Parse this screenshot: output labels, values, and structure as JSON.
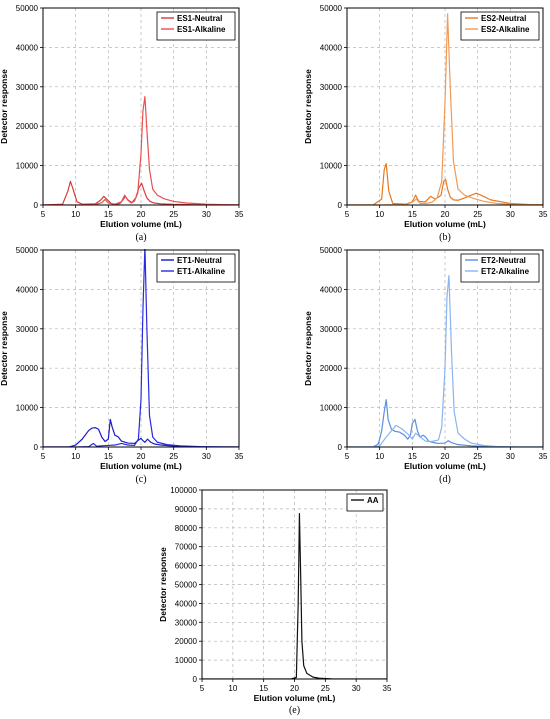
{
  "chart_data": [
    {
      "id": "a",
      "type": "line",
      "caption": "(a)",
      "xlabel": "Elution volume (mL)",
      "ylabel": "Detector response",
      "xlim": [
        5,
        35
      ],
      "ylim": [
        0,
        50000
      ],
      "xticks": [
        5,
        10,
        15,
        20,
        25,
        30,
        35
      ],
      "yticks": [
        0,
        10000,
        20000,
        30000,
        40000,
        50000
      ],
      "grid": true,
      "legend_position": "top-right",
      "series": [
        {
          "name": "ES1-Neutral",
          "color": "#d93a3a",
          "x": [
            5,
            8,
            8.8,
            9.2,
            9.6,
            10.2,
            11,
            13,
            13.8,
            14.3,
            14.8,
            15.5,
            16.3,
            16.8,
            17.2,
            17.6,
            18,
            18.6,
            19.2,
            19.7,
            20.1,
            20.5,
            20.9,
            21.4,
            22,
            23,
            25,
            28,
            32,
            35
          ],
          "y": [
            0,
            200,
            3500,
            6000,
            4000,
            800,
            200,
            300,
            1200,
            2200,
            1400,
            300,
            200,
            400,
            1200,
            2200,
            1300,
            600,
            1800,
            4500,
            5500,
            3500,
            1800,
            900,
            500,
            300,
            150,
            80,
            40,
            20
          ]
        },
        {
          "name": "ES1-Alkaline",
          "color": "#e85050",
          "x": [
            5,
            10,
            13,
            14,
            14.5,
            15,
            16,
            17,
            17.5,
            18,
            18.5,
            19,
            19.5,
            20,
            20.3,
            20.6,
            20.9,
            21.3,
            21.8,
            22.5,
            23.5,
            25,
            27,
            30,
            33,
            35
          ],
          "y": [
            0,
            0,
            100,
            600,
            1400,
            500,
            200,
            800,
            2500,
            1200,
            500,
            1000,
            3000,
            13000,
            24000,
            27500,
            19000,
            9000,
            4000,
            2500,
            1600,
            900,
            500,
            200,
            80,
            30
          ]
        }
      ]
    },
    {
      "id": "b",
      "type": "line",
      "caption": "(b)",
      "xlabel": "Elution volume (mL)",
      "ylabel": "Detector response",
      "xlim": [
        5,
        35
      ],
      "ylim": [
        0,
        50000
      ],
      "xticks": [
        5,
        10,
        15,
        20,
        25,
        30,
        35
      ],
      "yticks": [
        0,
        10000,
        20000,
        30000,
        40000,
        50000
      ],
      "grid": true,
      "legend_position": "top-right",
      "series": [
        {
          "name": "ES2-Neutral",
          "color": "#e8781e",
          "x": [
            5,
            9,
            10.3,
            10.7,
            11,
            11.4,
            12,
            14,
            15,
            15.5,
            16,
            17,
            17.8,
            18.5,
            19,
            19.4,
            19.8,
            20.1,
            20.4,
            20.8,
            21.3,
            22,
            23,
            24,
            24.8,
            25.5,
            27,
            30,
            33,
            35
          ],
          "y": [
            0,
            0,
            1500,
            9000,
            10500,
            3500,
            400,
            200,
            800,
            2500,
            900,
            800,
            2200,
            1500,
            2000,
            2500,
            6000,
            6500,
            4000,
            2000,
            1300,
            1200,
            1800,
            2500,
            3000,
            2500,
            1300,
            400,
            100,
            50
          ]
        },
        {
          "name": "ES2-Alkaline",
          "color": "#f09a55",
          "x": [
            5,
            10,
            14,
            15,
            15.6,
            16.2,
            17,
            18,
            18.8,
            19.5,
            20,
            20.4,
            20.8,
            21.3,
            22,
            23,
            24.5,
            26,
            28,
            30,
            35
          ],
          "y": [
            0,
            0,
            100,
            700,
            1500,
            400,
            400,
            700,
            1800,
            6000,
            26000,
            48500,
            30000,
            11000,
            4000,
            2500,
            1600,
            900,
            400,
            200,
            20
          ]
        }
      ]
    },
    {
      "id": "c",
      "type": "line",
      "caption": "(c)",
      "xlabel": "Elution volume (mL)",
      "ylabel": "Detector response",
      "xlim": [
        5,
        35
      ],
      "ylim": [
        0,
        50000
      ],
      "xticks": [
        5,
        10,
        15,
        20,
        25,
        30,
        35
      ],
      "yticks": [
        0,
        10000,
        20000,
        30000,
        40000,
        50000
      ],
      "grid": true,
      "legend_position": "top-right",
      "series": [
        {
          "name": "ET1-Neutral",
          "color": "#1a1acd",
          "x": [
            5,
            9,
            10,
            11,
            12,
            12.5,
            13,
            13.5,
            14,
            14.5,
            15,
            15.3,
            15.6,
            16,
            16.5,
            17,
            18,
            19,
            19.5,
            20,
            20.3,
            20.6,
            21,
            21.5,
            22,
            23,
            25,
            28,
            31,
            35
          ],
          "y": [
            0,
            0,
            500,
            2000,
            4200,
            4800,
            4900,
            4500,
            2500,
            1400,
            2000,
            7000,
            5000,
            3000,
            2600,
            1500,
            1000,
            900,
            1600,
            2200,
            1600,
            1200,
            2000,
            1200,
            800,
            500,
            250,
            80,
            20,
            0
          ]
        },
        {
          "name": "ET1-Alkaline",
          "color": "#2a2ae0",
          "x": [
            5,
            10,
            12,
            12.7,
            13.2,
            14,
            15,
            16,
            17,
            18,
            19,
            19.6,
            20,
            20.3,
            20.6,
            20.9,
            21.3,
            21.8,
            22.5,
            24,
            26,
            29,
            32,
            35
          ],
          "y": [
            0,
            0,
            100,
            900,
            200,
            300,
            400,
            500,
            900,
            500,
            400,
            2000,
            12000,
            35000,
            51000,
            30000,
            8000,
            2500,
            1200,
            600,
            300,
            100,
            30,
            0
          ]
        }
      ]
    },
    {
      "id": "d",
      "type": "line",
      "caption": "(d)",
      "xlabel": "Elution volume (mL)",
      "ylabel": "Detector response",
      "xlim": [
        5,
        35
      ],
      "ylim": [
        0,
        50000
      ],
      "xticks": [
        5,
        10,
        15,
        20,
        25,
        30,
        35
      ],
      "yticks": [
        0,
        10000,
        20000,
        30000,
        40000,
        50000
      ],
      "grid": true,
      "legend_position": "top-right",
      "series": [
        {
          "name": "ET2-Neutral",
          "color": "#5b8fe0",
          "x": [
            5,
            9,
            9.8,
            10.3,
            10.7,
            11,
            11.3,
            11.8,
            12.3,
            13,
            13.8,
            14.3,
            14.7,
            15,
            15.4,
            15.8,
            16.2,
            16.6,
            17,
            17.5,
            18,
            19,
            20,
            20.5,
            21,
            22,
            24,
            27,
            30,
            35
          ],
          "y": [
            0,
            0,
            800,
            4000,
            9000,
            12000,
            7000,
            4500,
            4000,
            3800,
            3000,
            2000,
            3000,
            6000,
            7000,
            4000,
            2500,
            3000,
            2600,
            1500,
            1200,
            900,
            1000,
            1600,
            1100,
            600,
            300,
            100,
            20,
            0
          ]
        },
        {
          "name": "ET2-Alkaline",
          "color": "#8ab4f0",
          "x": [
            5,
            9,
            10,
            11,
            12,
            12.5,
            13.5,
            14.5,
            15,
            15.5,
            16,
            17,
            18,
            19,
            19.5,
            20,
            20.3,
            20.6,
            21,
            21.4,
            22,
            23,
            24,
            26,
            28,
            31,
            35
          ],
          "y": [
            0,
            0,
            300,
            2500,
            4500,
            5500,
            4500,
            3000,
            2000,
            3500,
            2800,
            1500,
            1400,
            1800,
            5000,
            20000,
            38000,
            43500,
            24000,
            9000,
            3500,
            2000,
            1000,
            400,
            100,
            20,
            0
          ]
        }
      ]
    },
    {
      "id": "e",
      "type": "line",
      "caption": "(e)",
      "xlabel": "Elution volume (mL)",
      "ylabel": "Detector response",
      "xlim": [
        5,
        35
      ],
      "ylim": [
        0,
        100000
      ],
      "xticks": [
        5,
        10,
        15,
        20,
        25,
        30,
        35
      ],
      "yticks": [
        0,
        10000,
        20000,
        30000,
        40000,
        50000,
        60000,
        70000,
        80000,
        90000,
        100000
      ],
      "grid": true,
      "legend_position": "top-right",
      "series": [
        {
          "name": "AA",
          "color": "#111111",
          "x": [
            5,
            15,
            18,
            19.5,
            20.3,
            20.6,
            20.8,
            21.0,
            21.2,
            21.5,
            22,
            23,
            24,
            26,
            30,
            35
          ],
          "y": [
            0,
            0,
            0,
            100,
            800,
            40000,
            87500,
            55000,
            20000,
            7000,
            3000,
            1000,
            400,
            100,
            0,
            0
          ]
        }
      ]
    }
  ]
}
